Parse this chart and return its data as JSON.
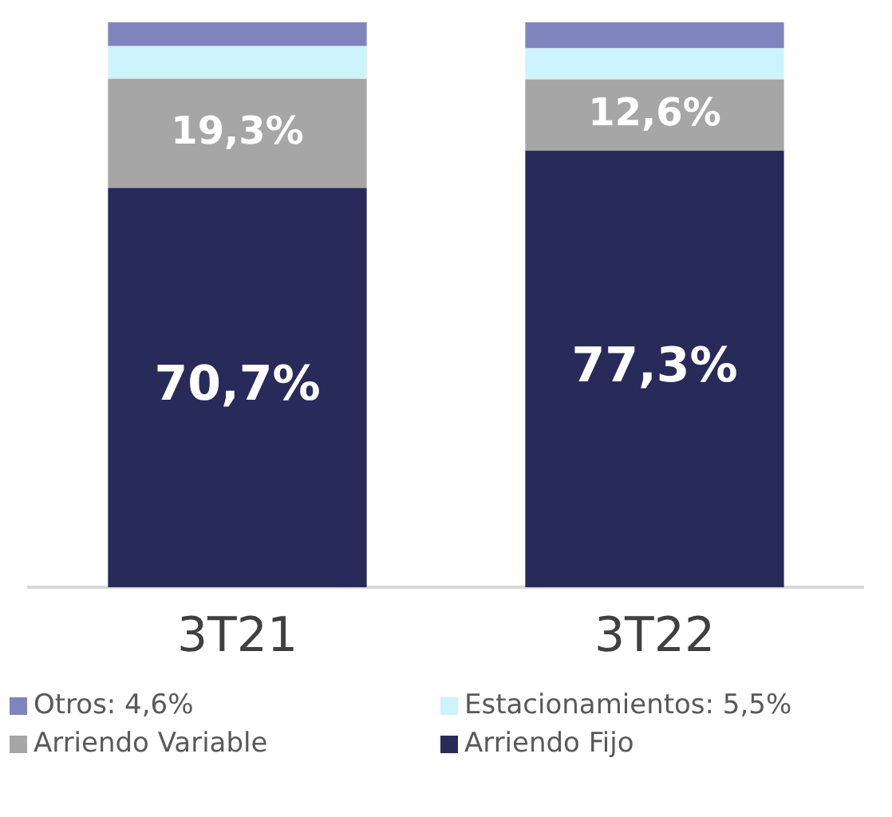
{
  "chart_data": {
    "type": "bar",
    "stacked": true,
    "categories": [
      "3T21",
      "3T22"
    ],
    "series": [
      {
        "name": "Arriendo Fijo",
        "color": "#282a5a",
        "values": [
          70.7,
          77.3
        ],
        "value_labels": [
          "70,7%",
          "77,3%"
        ]
      },
      {
        "name": "Arriendo Variable",
        "color": "#a6a6a6",
        "values": [
          19.3,
          12.6
        ],
        "value_labels": [
          "19,3%",
          "12,6%"
        ]
      },
      {
        "name": "Estacionamientos: 5,5%",
        "color": "#cdf3fb",
        "values": [
          5.8,
          5.5
        ]
      },
      {
        "name": "Otros: 4,6%",
        "color": "#7f84bd",
        "values": [
          4.2,
          4.6
        ]
      }
    ],
    "ylim": [
      0,
      100
    ],
    "tick_labels": "x",
    "grid": false,
    "legend": "bottom"
  }
}
